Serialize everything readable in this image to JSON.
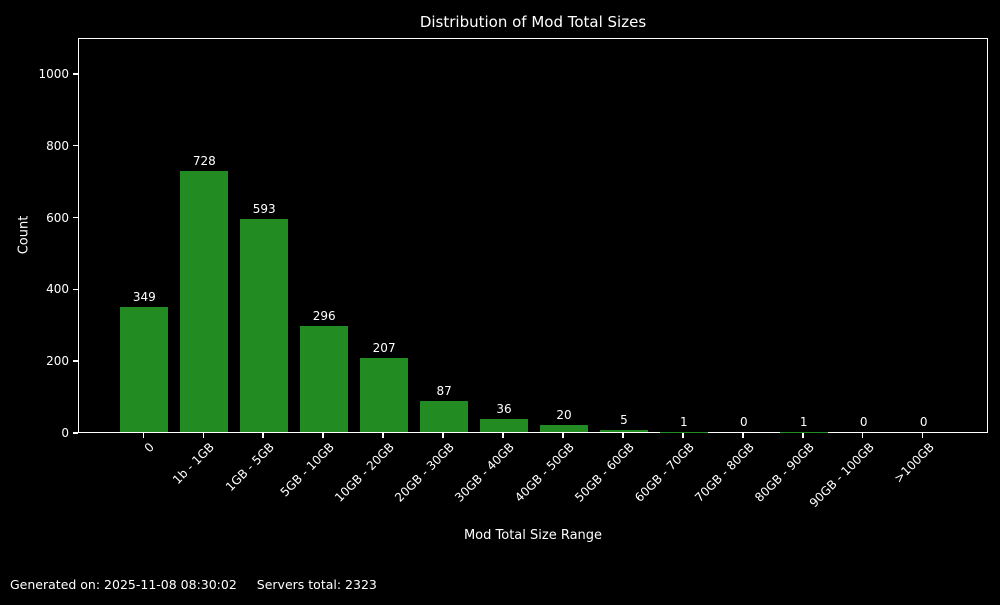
{
  "chart_data": {
    "type": "bar",
    "title": "Distribution of Mod Total Sizes",
    "xlabel": "Mod Total Size Range",
    "ylabel": "Count",
    "categories": [
      "0",
      "1b - 1GB",
      "1GB - 5GB",
      "5GB - 10GB",
      "10GB - 20GB",
      "20GB - 30GB",
      "30GB - 40GB",
      "40GB - 50GB",
      "50GB - 60GB",
      "60GB - 70GB",
      "70GB - 80GB",
      "80GB - 90GB",
      "90GB - 100GB",
      ">100GB"
    ],
    "values": [
      349,
      728,
      593,
      296,
      207,
      87,
      36,
      20,
      5,
      1,
      0,
      1,
      0,
      0
    ],
    "yticks": [
      0,
      200,
      400,
      600,
      800,
      1000
    ],
    "ylim": [
      0,
      1100
    ],
    "grid": false,
    "legend": null,
    "bar_color": "#228B22",
    "background_color": "#000000",
    "text_color": "#ffffff",
    "xtick_rotation_deg": 45
  },
  "footer": {
    "generated_label": "Generated on: 2025-11-08 08:30:02",
    "servers_total_label": "Servers total: 2323"
  }
}
